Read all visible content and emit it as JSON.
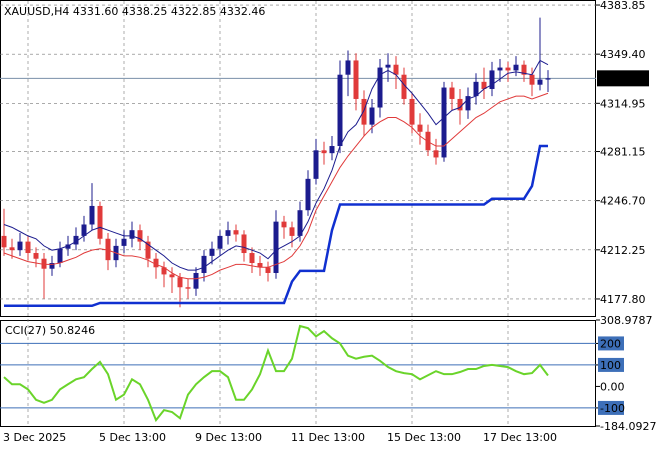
{
  "chart_data": [
    {
      "type": "candlestick",
      "title": "XAUUSD,H4  4331.60 4338.25 4322.85 4332.46",
      "categories": [
        "3 Dec 2025",
        null,
        null,
        null,
        null,
        null,
        null,
        null,
        null,
        null,
        null,
        null,
        "5 Dec 13:00",
        null,
        null,
        null,
        null,
        null,
        null,
        null,
        null,
        null,
        null,
        null,
        "9 Dec 13:00",
        null,
        null,
        null,
        null,
        null,
        null,
        null,
        null,
        null,
        null,
        null,
        "11 Dec 13:00",
        null,
        null,
        null,
        null,
        null,
        null,
        null,
        null,
        null,
        null,
        null,
        "15 Dec 13:00",
        null,
        null,
        null,
        null,
        null,
        null,
        null,
        null,
        null,
        null,
        null,
        "17 Dec 13:00",
        null,
        null,
        null,
        null,
        null,
        null,
        null,
        null
      ],
      "open": [
        4222,
        4214,
        4212,
        4218,
        4210,
        4206,
        4199,
        4203,
        4213,
        4216,
        4222,
        4230,
        4243,
        4220,
        4205,
        4215,
        4220,
        4226,
        4218,
        4206,
        4200,
        4195,
        4193,
        4186,
        4185,
        4196,
        4208,
        4213,
        4222,
        4226,
        4223,
        4210,
        4203,
        4200,
        4196,
        4232,
        4228,
        4222,
        4240,
        4262,
        4282,
        4280,
        4285,
        4335,
        4345,
        4318,
        4300,
        4312,
        4340,
        4342,
        4335,
        4318,
        4300,
        4295,
        4282,
        4277,
        4326,
        4318,
        4310,
        4320,
        4330,
        4325,
        4338,
        4340,
        4338,
        4342,
        4335,
        4328,
        4331.6
      ],
      "high": [
        4241,
        4220,
        4224,
        4222,
        4214,
        4210,
        4208,
        4218,
        4222,
        4228,
        4236,
        4259,
        4246,
        4224,
        4220,
        4226,
        4232,
        4230,
        4222,
        4210,
        4204,
        4200,
        4196,
        4192,
        4200,
        4212,
        4218,
        4226,
        4232,
        4230,
        4226,
        4214,
        4208,
        4204,
        4240,
        4236,
        4232,
        4246,
        4268,
        4290,
        4288,
        4292,
        4345,
        4352,
        4350,
        4324,
        4318,
        4346,
        4350,
        4348,
        4340,
        4322,
        4308,
        4300,
        4290,
        4330,
        4330,
        4325,
        4326,
        4336,
        4340,
        4344,
        4346,
        4344,
        4348,
        4345,
        4340,
        4375,
        4338.25
      ],
      "low": [
        4208,
        4206,
        4208,
        4205,
        4200,
        4178,
        4194,
        4200,
        4208,
        4212,
        4218,
        4226,
        4216,
        4198,
        4200,
        4210,
        4214,
        4212,
        4200,
        4192,
        4186,
        4182,
        4172,
        4178,
        4180,
        4190,
        4202,
        4208,
        4216,
        4218,
        4204,
        4196,
        4194,
        4190,
        4192,
        4220,
        4214,
        4218,
        4236,
        4258,
        4272,
        4275,
        4280,
        4320,
        4310,
        4292,
        4294,
        4305,
        4330,
        4325,
        4314,
        4294,
        4286,
        4278,
        4272,
        4274,
        4310,
        4300,
        4304,
        4314,
        4318,
        4320,
        4330,
        4330,
        4334,
        4330,
        4320,
        4324,
        4322.85
      ],
      "close": [
        4214,
        4212,
        4218,
        4210,
        4206,
        4199,
        4203,
        4213,
        4216,
        4222,
        4230,
        4243,
        4220,
        4205,
        4215,
        4220,
        4226,
        4218,
        4206,
        4200,
        4195,
        4193,
        4186,
        4185,
        4196,
        4208,
        4213,
        4222,
        4226,
        4223,
        4210,
        4203,
        4200,
        4196,
        4232,
        4228,
        4222,
        4240,
        4262,
        4282,
        4280,
        4285,
        4335,
        4345,
        4318,
        4300,
        4312,
        4340,
        4342,
        4335,
        4318,
        4300,
        4295,
        4282,
        4277,
        4326,
        4318,
        4310,
        4320,
        4330,
        4325,
        4338,
        4340,
        4338,
        4342,
        4335,
        4328,
        4331.6,
        4332.46
      ],
      "up_color": "#1c1c8e",
      "down_color": "#e03a3a",
      "lines": [
        {
          "color": "#1c1c8e",
          "width": 1,
          "values": [
            4230,
            4228,
            4225,
            4222,
            4220,
            4215,
            4212,
            4213,
            4215,
            4218,
            4222,
            4226,
            4228,
            4226,
            4224,
            4222,
            4222,
            4220,
            4216,
            4212,
            4208,
            4203,
            4200,
            4198,
            4198,
            4200,
            4204,
            4208,
            4212,
            4215,
            4214,
            4212,
            4210,
            4206,
            4212,
            4215,
            4218,
            4222,
            4232,
            4245,
            4255,
            4268,
            4285,
            4295,
            4300,
            4310,
            4325,
            4335,
            4338,
            4335,
            4328,
            4322,
            4315,
            4308,
            4300,
            4305,
            4310,
            4312,
            4318,
            4320,
            4325,
            4328,
            4332,
            4336,
            4337,
            4336,
            4335,
            4345,
            4342
          ]
        },
        {
          "color": "#e03a3a",
          "width": 1,
          "values": [
            4210,
            4208,
            4206,
            4204,
            4203,
            4202,
            4202,
            4203,
            4205,
            4207,
            4210,
            4212,
            4213,
            4212,
            4210,
            4208,
            4208,
            4207,
            4205,
            4202,
            4200,
            4196,
            4193,
            4192,
            4192,
            4193,
            4195,
            4198,
            4200,
            4202,
            4202,
            4201,
            4200,
            4200,
            4202,
            4204,
            4208,
            4215,
            4225,
            4240,
            4250,
            4260,
            4270,
            4278,
            4285,
            4292,
            4298,
            4302,
            4305,
            4305,
            4302,
            4298,
            4292,
            4288,
            4285,
            4285,
            4290,
            4295,
            4300,
            4305,
            4308,
            4312,
            4316,
            4318,
            4320,
            4320,
            4318,
            4320,
            4322
          ]
        },
        {
          "color": "#1030d0",
          "width": 2.5,
          "values": [
            4173,
            4173,
            4173,
            4173,
            4173,
            4173,
            4173,
            4173,
            4173,
            4173,
            4173,
            4173,
            4175,
            4175,
            4175,
            4175,
            4175,
            4175,
            4175,
            4175,
            4175,
            4175,
            4175,
            4175,
            4175,
            4175,
            4175,
            4175,
            4175,
            4175,
            4175,
            4175,
            4175,
            4175,
            4175,
            4175,
            4190,
            4197.5,
            4197.5,
            4197.5,
            4197.5,
            4226,
            4244,
            4244,
            4244,
            4244,
            4244,
            4244,
            4244,
            4244,
            4244,
            4244,
            4244,
            4244,
            4244,
            4244,
            4244,
            4244,
            4244,
            4244,
            4244,
            4248,
            4248,
            4248,
            4248,
            4248,
            4257,
            4285,
            4285
          ]
        }
      ],
      "current_price": 4332.46,
      "ylim": [
        4165.85,
        4387.37
      ],
      "yticks": [
        4383.85,
        {
          "value": 4349.4,
          "label": "4349.40"
        },
        4314.95,
        4281.15,
        {
          "value": 4246.7,
          "label": "4246.70"
        },
        4212.25,
        {
          "value": 4177.8,
          "label": "4177.80"
        }
      ],
      "grid": true
    },
    {
      "type": "line",
      "title": "CCI(27) 50.8246",
      "color": "#6ad42a",
      "values": [
        43,
        10,
        10,
        -14,
        -62,
        -76,
        -62,
        -14,
        10,
        33,
        43,
        81,
        114,
        57,
        -62,
        -38,
        33,
        10,
        -62,
        -157,
        -110,
        -119,
        -148,
        -38,
        10,
        43,
        71,
        71,
        43,
        -62,
        -62,
        -14,
        57,
        167,
        71,
        71,
        129,
        281,
        271,
        233,
        257,
        224,
        200,
        143,
        129,
        138,
        143,
        119,
        90,
        71,
        62,
        57,
        33,
        52,
        71,
        57,
        57,
        67,
        81,
        81,
        95,
        100,
        95,
        90,
        71,
        57,
        62,
        100,
        50.8246
      ],
      "levels": [
        200,
        100,
        -100
      ],
      "level_color": "#3d6fb8",
      "ylim": [
        -184.0927,
        308.9787
      ],
      "yticks": [
        308.9787,
        200,
        100,
        {
          "value": 0,
          "label": "0.00"
        },
        -100,
        -184.0927
      ]
    }
  ]
}
